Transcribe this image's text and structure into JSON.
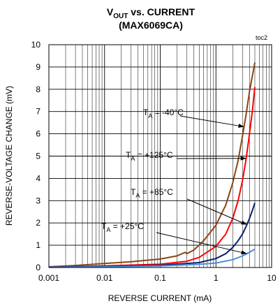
{
  "chart_data": {
    "type": "line",
    "title_prefix": "V",
    "title_sub": "OUT",
    "title_suffix": " vs. CURRENT",
    "subtitle": "(MAX6069CA)",
    "tag": "toc2",
    "xlabel": "REVERSE CURRENT (mA)",
    "ylabel": "REVERSE-VOLTAGE CHANGE (mV)",
    "xscale": "log",
    "xlim": [
      0.001,
      10
    ],
    "ylim": [
      0,
      10
    ],
    "xticks": [
      "0.001",
      "0.01",
      "0.1",
      "1",
      "10"
    ],
    "yticks": [
      "0",
      "1",
      "2",
      "3",
      "4",
      "5",
      "6",
      "7",
      "8",
      "9",
      "10"
    ],
    "grid": true,
    "series": [
      {
        "name": "TA = -40°C",
        "label_main": "T",
        "label_sub": "A",
        "label_rest": " = -40°C",
        "color": "#8b4513",
        "x": [
          0.001,
          0.003,
          0.01,
          0.03,
          0.1,
          0.2,
          0.28,
          0.3,
          0.4,
          0.6,
          1,
          1.5,
          2,
          2.5,
          3,
          3.5,
          4,
          5
        ],
        "y": [
          0.03,
          0.09,
          0.18,
          0.26,
          0.38,
          0.52,
          0.68,
          0.62,
          0.78,
          1.2,
          1.9,
          2.8,
          3.8,
          4.8,
          5.9,
          6.9,
          7.9,
          9.2
        ]
      },
      {
        "name": "TA = +125°C",
        "label_main": "T",
        "label_sub": "A",
        "label_rest": " = +125°C",
        "color": "#ff0000",
        "x": [
          0.001,
          0.01,
          0.1,
          0.3,
          0.5,
          1,
          1.5,
          2,
          2.5,
          3,
          3.5,
          4,
          4.5,
          5
        ],
        "y": [
          0.02,
          0.07,
          0.15,
          0.28,
          0.45,
          0.95,
          1.5,
          2.2,
          3.0,
          3.9,
          4.9,
          6.0,
          7.0,
          8.1
        ]
      },
      {
        "name": "TA = +85°C",
        "label_main": "T",
        "label_sub": "A",
        "label_rest": " = +85°C",
        "color": "#0a1f6e",
        "x": [
          0.001,
          0.01,
          0.1,
          0.5,
          1,
          1.5,
          2,
          2.5,
          3,
          3.5,
          4,
          4.5,
          5
        ],
        "y": [
          0.02,
          0.05,
          0.1,
          0.22,
          0.4,
          0.62,
          0.9,
          1.2,
          1.5,
          1.85,
          2.2,
          2.55,
          2.9
        ]
      },
      {
        "name": "TA = +25°C",
        "label_main": "T",
        "label_sub": "A",
        "label_rest": " = +25°C",
        "color": "#4a90d9",
        "x": [
          0.001,
          0.01,
          0.1,
          0.5,
          1,
          2,
          3,
          4,
          5
        ],
        "y": [
          0.01,
          0.03,
          0.07,
          0.14,
          0.2,
          0.35,
          0.52,
          0.68,
          0.82
        ]
      }
    ]
  }
}
